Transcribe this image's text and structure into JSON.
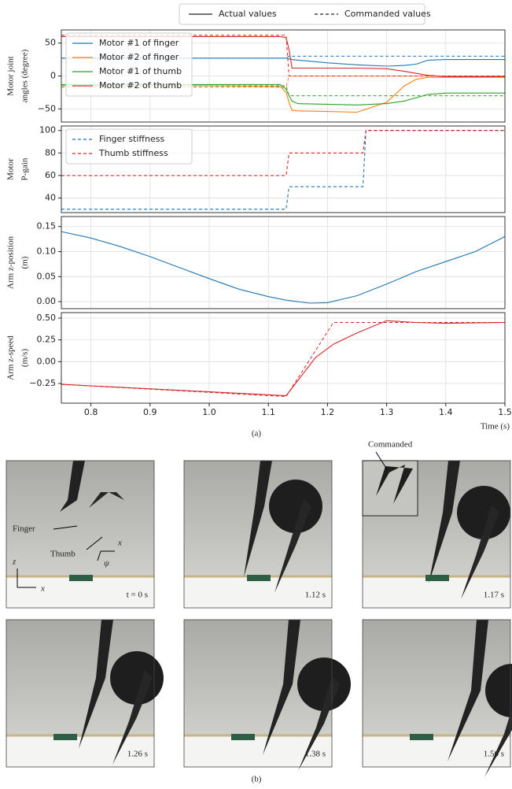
{
  "line_legend": {
    "actual": "Actual values",
    "commanded": "Commanded values"
  },
  "chart_data": [
    {
      "type": "line",
      "ylabel": [
        "Motor joint",
        "angles (degree)"
      ],
      "legend": "upper left",
      "ylim": [
        -70,
        70
      ],
      "yticks": [
        {
          "value": -50,
          "label": "−50"
        },
        0,
        50
      ],
      "x": [
        0.75,
        1.0,
        1.12,
        1.13,
        1.135,
        1.14,
        1.15,
        1.2,
        1.25,
        1.3,
        1.33,
        1.35,
        1.37,
        1.4,
        1.5
      ],
      "series": [
        {
          "name": "Motor #1 of finger",
          "color": "#1f77b4",
          "linestyle": "solid",
          "values": [
            27,
            27,
            27,
            27,
            26,
            25,
            24,
            20,
            17,
            15,
            16,
            18,
            24,
            25,
            25
          ],
          "commanded": [
            27,
            27,
            27,
            27,
            30,
            30,
            30,
            30,
            30,
            30,
            30,
            30,
            30,
            30,
            30
          ]
        },
        {
          "name": "Motor #2 of finger",
          "color": "#ff7f0e",
          "linestyle": "solid",
          "values": [
            -15,
            -15,
            -16,
            -25,
            -40,
            -52,
            -53,
            -54,
            -55,
            -40,
            -15,
            -5,
            -2,
            -2,
            -2
          ],
          "commanded": [
            -17,
            -17,
            -17,
            -17,
            0,
            0,
            0,
            0,
            0,
            0,
            0,
            0,
            0,
            0,
            0
          ]
        },
        {
          "name": "Motor #1 of thumb",
          "color": "#2ca02c",
          "linestyle": "solid",
          "values": [
            -13,
            -13,
            -13,
            -20,
            -30,
            -38,
            -42,
            -43,
            -44,
            -42,
            -38,
            -33,
            -28,
            -26,
            -26
          ],
          "commanded": [
            -15,
            -15,
            -15,
            -15,
            -30,
            -30,
            -30,
            -30,
            -30,
            -30,
            -30,
            -30,
            -30,
            -30,
            -30
          ]
        },
        {
          "name": "Motor #2 of thumb",
          "color": "#d62728",
          "linestyle": "solid",
          "values": [
            60,
            60,
            60,
            58,
            40,
            12,
            12,
            12,
            12,
            11,
            7,
            4,
            1,
            -1,
            -1
          ],
          "commanded": [
            62,
            62,
            62,
            62,
            0,
            0,
            0,
            0,
            0,
            0,
            0,
            0,
            0,
            0,
            0
          ]
        }
      ]
    },
    {
      "type": "line",
      "ylabel": [
        "Motor",
        "P-gain"
      ],
      "legend": "upper left",
      "ylim": [
        27,
        104
      ],
      "yticks": [
        40,
        60,
        80,
        100
      ],
      "x": [
        0.75,
        1.13,
        1.135,
        1.26,
        1.265,
        1.5
      ],
      "series": [
        {
          "name": "Finger stiffness",
          "color": "#1f77b4",
          "linestyle": "dashed",
          "values": [
            30,
            30,
            50,
            50,
            100,
            100
          ]
        },
        {
          "name": "Thumb stiffness",
          "color": "#d62728",
          "linestyle": "dashed",
          "values": [
            60,
            60,
            80,
            80,
            100,
            100
          ]
        }
      ]
    },
    {
      "type": "line",
      "ylabel": [
        "Arm z-position",
        "(m)"
      ],
      "ylim": [
        -0.014,
        0.17
      ],
      "yticks": [
        {
          "value": 0,
          "label": "0.00"
        },
        0.05,
        {
          "value": 0.1,
          "label": "0.10"
        },
        0.15
      ],
      "x": [
        0.75,
        0.8,
        0.85,
        0.9,
        0.95,
        1.0,
        1.05,
        1.1,
        1.13,
        1.15,
        1.17,
        1.2,
        1.25,
        1.3,
        1.35,
        1.4,
        1.45,
        1.5
      ],
      "series": [
        {
          "color": "#1f77b4",
          "linestyle": "solid",
          "values": [
            0.14,
            0.127,
            0.11,
            0.09,
            0.068,
            0.046,
            0.025,
            0.01,
            0.003,
            0,
            -0.003,
            -0.002,
            0.012,
            0.035,
            0.06,
            0.08,
            0.1,
            0.13
          ]
        }
      ]
    },
    {
      "type": "line",
      "ylabel": [
        "Arm z-speed",
        "(m/s)"
      ],
      "ylim": [
        -0.476,
        0.563
      ],
      "yticks": [
        {
          "value": -0.25,
          "label": "−0.25"
        },
        {
          "value": 0,
          "label": "0.00"
        },
        0.25,
        {
          "value": 0.5,
          "label": "0.50"
        }
      ],
      "xlim": [
        0.75,
        1.5
      ],
      "xticks": [
        0.8,
        0.9,
        {
          "value": 1,
          "label": "1.0"
        },
        1.1,
        1.2,
        1.3,
        1.4,
        1.5
      ],
      "xlabel": "Time (s)",
      "x": [
        0.75,
        1.13,
        1.18,
        1.21,
        1.25,
        1.3,
        1.35,
        1.4,
        1.5
      ],
      "series": [
        {
          "color": "#d62728",
          "linestyle": "solid",
          "values": [
            -0.26,
            -0.39,
            0.05,
            0.2,
            0.33,
            0.47,
            0.45,
            0.44,
            0.45
          ],
          "commanded": [
            -0.26,
            -0.4,
            0.13,
            0.45,
            0.45,
            0.45,
            0.45,
            0.45,
            0.45
          ]
        }
      ]
    }
  ],
  "captions": {
    "a": "(a)",
    "b": "(b)"
  },
  "photos": [
    {
      "label": "t = 0 s"
    },
    {
      "label": "1.12 s"
    },
    {
      "label": "1.17 s"
    },
    {
      "label": "1.26 s"
    },
    {
      "label": "1.38 s"
    },
    {
      "label": "1.50 s"
    }
  ],
  "photo_annotations": {
    "finger": "Finger",
    "thumb": "Thumb",
    "tool_x": "x",
    "tool_psi": "ψ",
    "world_z": "z",
    "world_x": "x",
    "inset": "Commanded"
  }
}
